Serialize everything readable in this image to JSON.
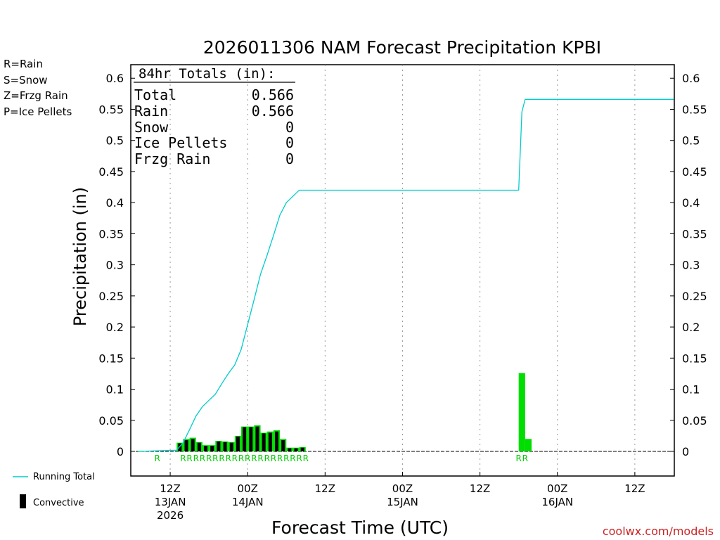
{
  "chart_data": {
    "type": "bar",
    "title": "2026011306 NAM Forecast Precipitation KPBI",
    "xlabel": "Forecast Time (UTC)",
    "ylabel": "Precipitation (in)",
    "ylim": [
      -0.035,
      0.625
    ],
    "y_ticks": [
      0,
      0.05,
      0.1,
      0.15,
      0.2,
      0.25,
      0.3,
      0.35,
      0.4,
      0.45,
      0.5,
      0.55,
      0.6
    ],
    "y_tick_labels": [
      "0",
      "0.05",
      "0.1",
      "0.15",
      "0.2",
      "0.25",
      "0.3",
      "0.35",
      "0.4",
      "0.45",
      "0.5",
      "0.55",
      "0.6"
    ],
    "x_unit": "forecast hour",
    "xlim": [
      0,
      84
    ],
    "x_ticks": [
      {
        "hour": 6,
        "time": "12Z",
        "date": "13JAN",
        "year": "2026"
      },
      {
        "hour": 18,
        "time": "00Z",
        "date": "14JAN",
        "year": ""
      },
      {
        "hour": 30,
        "time": "12Z",
        "date": "",
        "year": ""
      },
      {
        "hour": 42,
        "time": "00Z",
        "date": "15JAN",
        "year": ""
      },
      {
        "hour": 54,
        "time": "12Z",
        "date": "",
        "year": ""
      },
      {
        "hour": 66,
        "time": "00Z",
        "date": "16JAN",
        "year": ""
      },
      {
        "hour": 78,
        "time": "12Z",
        "date": "",
        "year": ""
      }
    ],
    "series": [
      {
        "name": "Running Total",
        "color": "#00cccc",
        "type": "line",
        "x": [
          1,
          4,
          7,
          8,
          9,
          10,
          11,
          12,
          13,
          14,
          15,
          16,
          17,
          18,
          19,
          20,
          21,
          22,
          23,
          24,
          25,
          26,
          27,
          28,
          60,
          60.5,
          61,
          84
        ],
        "y": [
          0,
          0.001,
          0.002,
          0.014,
          0.035,
          0.057,
          0.072,
          0.082,
          0.092,
          0.109,
          0.125,
          0.139,
          0.164,
          0.204,
          0.244,
          0.285,
          0.315,
          0.347,
          0.38,
          0.4,
          0.41,
          0.42,
          0.42,
          0.42,
          0.42,
          0.546,
          0.566,
          0.566
        ]
      },
      {
        "name": "Rain",
        "color": "#00dd00",
        "type": "bar",
        "x": [
          1.5,
          7.5,
          8.5,
          9.5,
          10.5,
          11.5,
          12.5,
          13.5,
          14.5,
          15.5,
          16.5,
          17.5,
          18.5,
          19.5,
          20.5,
          21.5,
          22.5,
          23.5,
          24.5,
          25.5,
          26.5,
          27.5,
          60.5,
          61.5
        ],
        "values": [
          0.001,
          0.014,
          0.02,
          0.022,
          0.015,
          0.01,
          0.01,
          0.017,
          0.016,
          0.015,
          0.025,
          0.04,
          0.04,
          0.042,
          0.03,
          0.032,
          0.034,
          0.02,
          0.006,
          0.006,
          0.007,
          0.0,
          0.126,
          0.02
        ]
      },
      {
        "name": "Convective",
        "color": "#000000",
        "type": "bar",
        "x": [
          7.5,
          8.5,
          9.5,
          10.5,
          11.5,
          12.5,
          13.5,
          14.5,
          15.5,
          16.5,
          17.5,
          18.5,
          19.5,
          20.5,
          21.5,
          22.5,
          23.5,
          24.5,
          25.5,
          26.5
        ],
        "values": [
          0.013,
          0.018,
          0.02,
          0.014,
          0.009,
          0.009,
          0.016,
          0.015,
          0.014,
          0.024,
          0.039,
          0.039,
          0.04,
          0.029,
          0.03,
          0.032,
          0.018,
          0.005,
          0.005,
          0.006
        ]
      }
    ],
    "ptype_markers": {
      "x": [
        4,
        8,
        9,
        10,
        11,
        12,
        13,
        14,
        15,
        16,
        17,
        18,
        19,
        20,
        21,
        22,
        23,
        24,
        25,
        26,
        27,
        60,
        61
      ],
      "labels": [
        "R",
        "R",
        "R",
        "R",
        "R",
        "R",
        "R",
        "R",
        "R",
        "R",
        "R",
        "R",
        "R",
        "R",
        "R",
        "R",
        "R",
        "R",
        "R",
        "R",
        "R",
        "R",
        "R"
      ]
    },
    "totals_box": {
      "title": "84hr Totals (in):",
      "rows": [
        {
          "label": "Total",
          "value": "0.566"
        },
        {
          "label": "Rain",
          "value": "0.566"
        },
        {
          "label": "Snow",
          "value": "0"
        },
        {
          "label": "Ice Pellets",
          "value": "0"
        },
        {
          "label": "Frzg Rain",
          "value": "0"
        }
      ]
    },
    "ptype_legend": [
      {
        "label": "R=Rain",
        "color": "#00dd00"
      },
      {
        "label": "S=Snow",
        "color": "#3355ee"
      },
      {
        "label": "Z=Frzg Rain",
        "color": "#ee8833"
      },
      {
        "label": "P=Ice Pellets",
        "color": "#ee2277"
      }
    ],
    "series_legend": [
      {
        "label": "Running Total",
        "icon": "line-icon"
      },
      {
        "label": "Convective",
        "icon": "bar-icon"
      }
    ],
    "credit": "coolwx.com/models",
    "grid": "vertical dotted lines at x ticks"
  }
}
